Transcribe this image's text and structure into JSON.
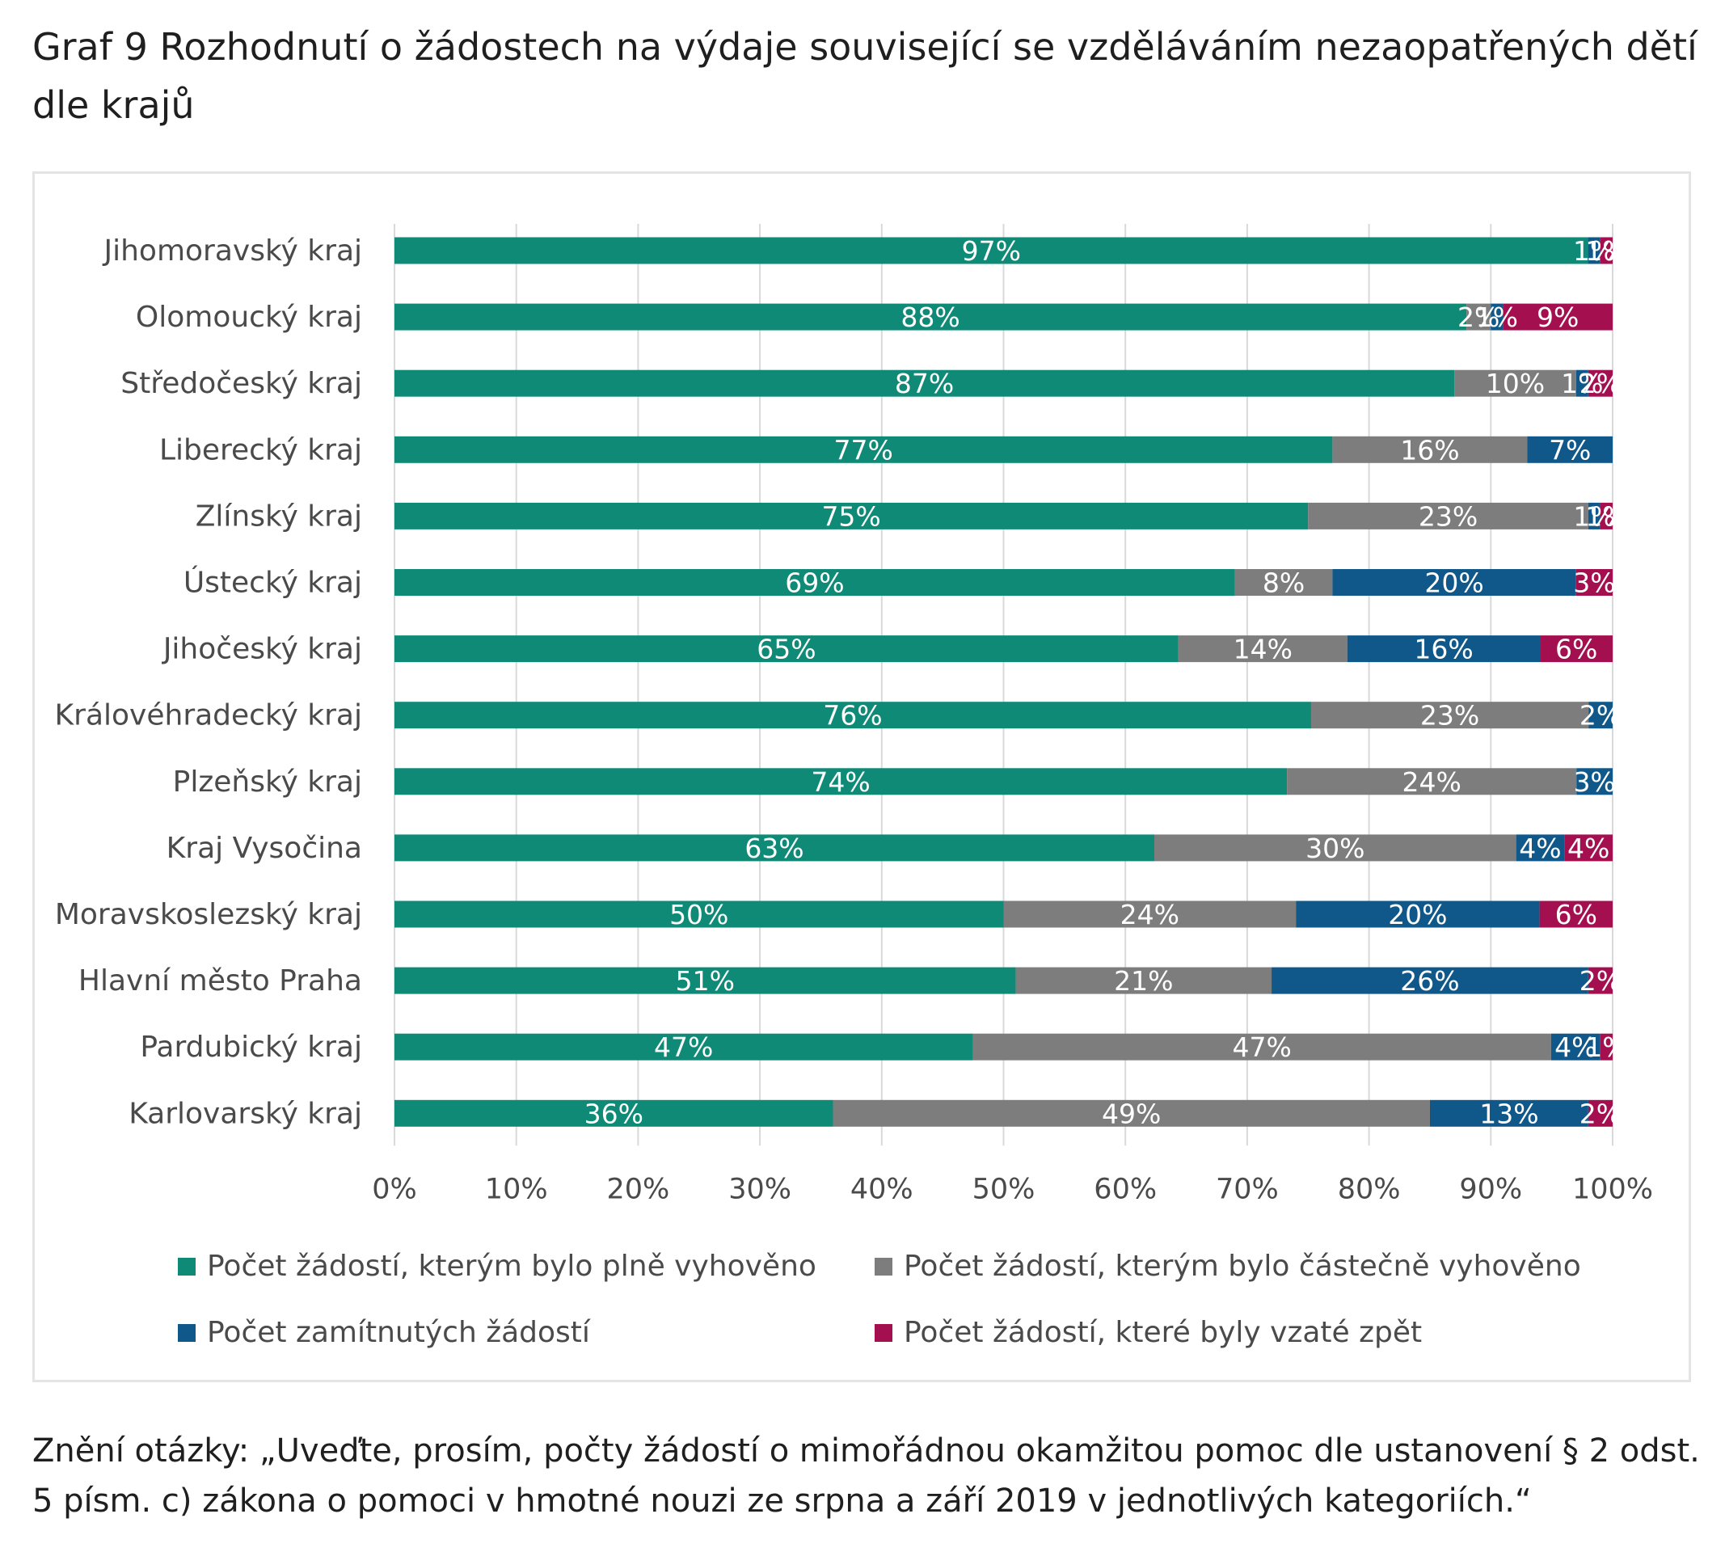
{
  "title": "Graf 9 Rozhodnutí o žádostech na výdaje související se vzděláváním nezaopatřených dětí dle krajů",
  "note": "Znění otázky: „Uveďte, prosím, počty žádostí o mimořádnou okamžitou pomoc dle ustanovení § 2 odst. 5 písm. c) zákona o pomoci v hmotné nouzi ze srpna a září 2019 v jednotlivých kategoriích.“",
  "chart_data": {
    "type": "bar",
    "orientation": "horizontal",
    "stacked": "percent",
    "title": "Graf 9 Rozhodnutí o žádostech na výdaje související se vzděláváním nezaopatřených dětí dle krajů",
    "xlabel": "",
    "ylabel": "",
    "xlim": [
      0,
      100
    ],
    "x_ticks": [
      "0%",
      "10%",
      "20%",
      "30%",
      "40%",
      "50%",
      "60%",
      "70%",
      "80%",
      "90%",
      "100%"
    ],
    "grid": "vertical",
    "legend_position": "bottom",
    "categories": [
      "Jihomoravský kraj",
      "Olomoucký kraj",
      "Středočeský kraj",
      "Liberecký kraj",
      "Zlínský kraj",
      "Ústecký kraj",
      "Jihočeský kraj",
      "Královéhradecký kraj",
      "Plzeňský kraj",
      "Kraj Vysočina",
      "Moravskoslezský kraj",
      "Hlavní město Praha",
      "Pardubický kraj",
      "Karlovarský kraj"
    ],
    "series": [
      {
        "name": "Počet žádostí, kterým bylo plně vyhověno",
        "color": "#0e8a77",
        "values": [
          97,
          88,
          87,
          77,
          75,
          69,
          65,
          76,
          74,
          63,
          50,
          51,
          47,
          36
        ],
        "labels": [
          "97%",
          "88%",
          "87%",
          "77%",
          "75%",
          "69%",
          "65%",
          "76%",
          "74%",
          "63%",
          "50%",
          "51%",
          "47%",
          "36%"
        ]
      },
      {
        "name": "Počet žádostí, kterým bylo částečně vyhověno",
        "color": "#7d7d7d",
        "values": [
          0,
          2,
          10,
          16,
          23,
          8,
          14,
          23,
          24,
          30,
          24,
          21,
          47,
          49
        ],
        "labels": [
          "",
          "2%",
          "10%",
          "16%",
          "23%",
          "8%",
          "14%",
          "23%",
          "24%",
          "30%",
          "24%",
          "21%",
          "47%",
          "49%"
        ]
      },
      {
        "name": "Počet zamítnutých žádostí",
        "color": "#10588a",
        "values": [
          1,
          1,
          1,
          7,
          1,
          20,
          16,
          2,
          3,
          4,
          20,
          26,
          4,
          13
        ],
        "labels": [
          "1%",
          "1%",
          "1%",
          "7%",
          "1%",
          "20%",
          "16%",
          "2%",
          "3%",
          "4%",
          "20%",
          "26%",
          "4%",
          "13%"
        ]
      },
      {
        "name": "Počet žádostí, které byly vzaté zpět",
        "color": "#a4104f",
        "values": [
          1,
          9,
          2,
          0,
          1,
          3,
          6,
          0,
          0,
          4,
          6,
          2,
          1,
          2
        ],
        "labels": [
          "1%",
          "9%",
          "2%",
          "",
          "1%",
          "3%",
          "6%",
          "",
          "",
          "4%",
          "6%",
          "2%",
          "1%",
          "2%"
        ]
      }
    ]
  }
}
